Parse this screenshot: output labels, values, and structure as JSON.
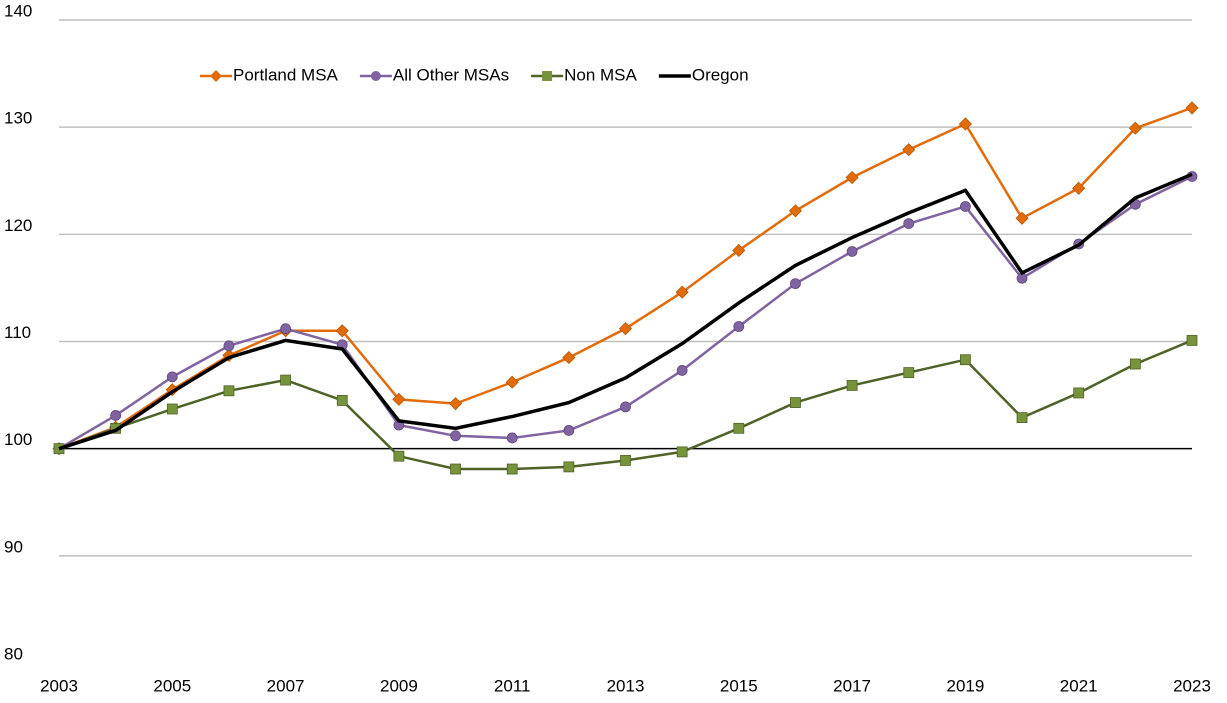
{
  "chart_data": {
    "type": "line",
    "x": [
      2003,
      2004,
      2005,
      2006,
      2007,
      2008,
      2009,
      2010,
      2011,
      2012,
      2013,
      2014,
      2015,
      2016,
      2017,
      2018,
      2019,
      2020,
      2021,
      2022,
      2023
    ],
    "xlim": [
      2003,
      2023
    ],
    "xticks": [
      2003,
      2005,
      2007,
      2009,
      2011,
      2013,
      2015,
      2017,
      2019,
      2021,
      2023
    ],
    "ylim": [
      80,
      140
    ],
    "yticks": [
      80,
      90,
      100,
      110,
      120,
      130,
      140
    ],
    "grid": true,
    "reference_line": 100,
    "legend": "top",
    "series": [
      {
        "name": "Portland MSA",
        "color": "#e26b0a",
        "marker": "diamond",
        "values": [
          100,
          102,
          105.5,
          108.7,
          111.0,
          111.0,
          104.6,
          104.2,
          106.2,
          108.5,
          111.2,
          114.6,
          118.5,
          122.2,
          125.3,
          127.9,
          130.3,
          121.5,
          124.3,
          129.9,
          131.8
        ]
      },
      {
        "name": "All Other MSAs",
        "color": "#8064a2",
        "marker": "circle",
        "values": [
          100,
          103.1,
          106.7,
          109.6,
          111.2,
          109.7,
          102.2,
          101.2,
          101.0,
          101.7,
          103.9,
          107.3,
          111.4,
          115.4,
          118.4,
          121.0,
          122.6,
          115.9,
          119.1,
          122.8,
          125.4
        ]
      },
      {
        "name": "Non MSA",
        "color": "#77933c",
        "marker": "square",
        "values": [
          100,
          101.9,
          103.7,
          105.4,
          106.4,
          104.5,
          99.3,
          98.1,
          98.1,
          98.3,
          98.9,
          99.7,
          101.9,
          104.3,
          105.9,
          107.1,
          108.3,
          102.9,
          105.2,
          107.9,
          110.1
        ]
      },
      {
        "name": "Oregon",
        "color": "#000000",
        "marker": "none",
        "values": [
          100,
          101.7,
          105.3,
          108.5,
          110.1,
          109.3,
          102.6,
          101.9,
          103.0,
          104.3,
          106.6,
          109.8,
          113.6,
          117.1,
          119.7,
          122.0,
          124.1,
          116.4,
          119.0,
          123.4,
          125.6
        ]
      }
    ]
  }
}
